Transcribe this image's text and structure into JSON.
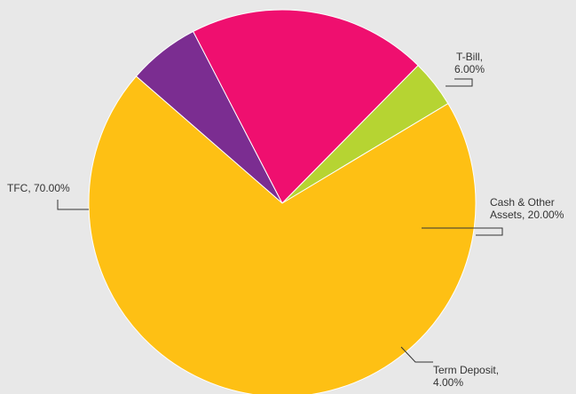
{
  "chart_data": {
    "type": "pie",
    "title": "",
    "slices": [
      {
        "name": "T-Bill",
        "value": 6.0,
        "label": [
          "T-Bill,",
          "6.00%"
        ],
        "color": "#7b2d91"
      },
      {
        "name": "Cash & Other Assets",
        "value": 20.0,
        "label": [
          "Cash & Other",
          "Assets, 20.00%"
        ],
        "color": "#ef0f6f"
      },
      {
        "name": "Term Deposit",
        "value": 4.0,
        "label": [
          "Term Deposit,",
          "4.00%"
        ],
        "color": "#b6d432"
      },
      {
        "name": "TFC",
        "value": 70.0,
        "label": [
          "TFC, 70.00%"
        ],
        "color": "#fec014"
      }
    ],
    "legend": "none"
  }
}
